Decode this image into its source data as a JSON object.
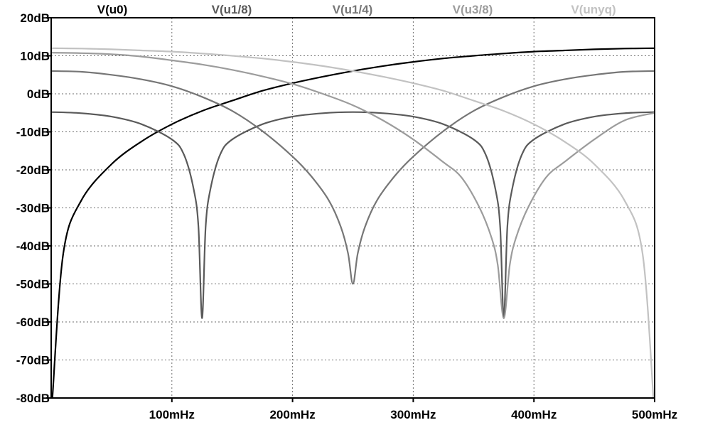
{
  "chart_data": {
    "type": "line",
    "title": "",
    "xlabel": "",
    "ylabel": "",
    "x_unit": "mHz",
    "y_unit": "dB",
    "xlim": [
      0,
      500
    ],
    "ylim": [
      -80,
      20
    ],
    "grid": true,
    "legend_placement": "top",
    "x_ticks": [
      {
        "value": 100,
        "label": "100mHz"
      },
      {
        "value": 200,
        "label": "200mHz"
      },
      {
        "value": 300,
        "label": "300mHz"
      },
      {
        "value": 400,
        "label": "400mHz"
      },
      {
        "value": 500,
        "label": "500mHz"
      }
    ],
    "y_ticks": [
      {
        "value": 20,
        "label": "20dB"
      },
      {
        "value": 10,
        "label": "10dB"
      },
      {
        "value": 0,
        "label": "0dB"
      },
      {
        "value": -10,
        "label": "-10dB"
      },
      {
        "value": -20,
        "label": "-20dB"
      },
      {
        "value": -30,
        "label": "-30dB"
      },
      {
        "value": -40,
        "label": "-40dB"
      },
      {
        "value": -50,
        "label": "-50dB"
      },
      {
        "value": -60,
        "label": "-60dB"
      },
      {
        "value": -70,
        "label": "-70dB"
      },
      {
        "value": -80,
        "label": "-80dB"
      }
    ],
    "series": [
      {
        "name": "V(u0)",
        "color": "#000000",
        "points": [
          [
            1,
            -80
          ],
          [
            10,
            -42
          ],
          [
            25,
            -28
          ],
          [
            50,
            -18.5
          ],
          [
            75,
            -12.5
          ],
          [
            100,
            -8
          ],
          [
            125,
            -4.5
          ],
          [
            150,
            -1.8
          ],
          [
            175,
            0.8
          ],
          [
            200,
            2.8
          ],
          [
            225,
            4.5
          ],
          [
            250,
            6
          ],
          [
            275,
            7.3
          ],
          [
            300,
            8.4
          ],
          [
            325,
            9.3
          ],
          [
            350,
            10
          ],
          [
            375,
            10.6
          ],
          [
            400,
            11.1
          ],
          [
            425,
            11.4
          ],
          [
            450,
            11.7
          ],
          [
            475,
            11.9
          ],
          [
            500,
            12
          ]
        ]
      },
      {
        "name": "V(u1/8)",
        "color": "#5a5a5a",
        "points": [
          [
            0,
            -4.8
          ],
          [
            25,
            -5.1
          ],
          [
            50,
            -6
          ],
          [
            75,
            -8
          ],
          [
            100,
            -12
          ],
          [
            110,
            -16
          ],
          [
            118,
            -25
          ],
          [
            122,
            -35
          ],
          [
            125,
            -59
          ],
          [
            128,
            -35
          ],
          [
            132,
            -25
          ],
          [
            140,
            -16
          ],
          [
            150,
            -12
          ],
          [
            175,
            -8
          ],
          [
            200,
            -6
          ],
          [
            225,
            -5.1
          ],
          [
            250,
            -4.8
          ],
          [
            275,
            -5.1
          ],
          [
            300,
            -6
          ],
          [
            325,
            -8
          ],
          [
            350,
            -12
          ],
          [
            360,
            -16
          ],
          [
            368,
            -25
          ],
          [
            372,
            -35
          ],
          [
            375,
            -59
          ],
          [
            378,
            -35
          ],
          [
            382,
            -25
          ],
          [
            390,
            -16
          ],
          [
            400,
            -12
          ],
          [
            425,
            -8
          ],
          [
            450,
            -6
          ],
          [
            475,
            -5.1
          ],
          [
            500,
            -4.8
          ]
        ]
      },
      {
        "name": "V(u1/4)",
        "color": "#767676",
        "points": [
          [
            0,
            6
          ],
          [
            25,
            5.8
          ],
          [
            50,
            5
          ],
          [
            75,
            3.8
          ],
          [
            100,
            2
          ],
          [
            125,
            -0.8
          ],
          [
            150,
            -4.5
          ],
          [
            175,
            -9.8
          ],
          [
            200,
            -16.5
          ],
          [
            215,
            -21.5
          ],
          [
            230,
            -28
          ],
          [
            240,
            -35
          ],
          [
            246,
            -42
          ],
          [
            250,
            -50
          ],
          [
            254,
            -42
          ],
          [
            260,
            -35
          ],
          [
            270,
            -28
          ],
          [
            285,
            -21.5
          ],
          [
            300,
            -16.5
          ],
          [
            325,
            -9.8
          ],
          [
            350,
            -4.5
          ],
          [
            375,
            -0.8
          ],
          [
            400,
            2
          ],
          [
            425,
            3.8
          ],
          [
            450,
            5
          ],
          [
            475,
            5.8
          ],
          [
            500,
            6
          ]
        ]
      },
      {
        "name": "V(u3/8)",
        "color": "#9c9c9c",
        "points": [
          [
            0,
            10.8
          ],
          [
            25,
            10.7
          ],
          [
            50,
            10.4
          ],
          [
            75,
            9.8
          ],
          [
            100,
            8.8
          ],
          [
            125,
            7.7
          ],
          [
            150,
            6.3
          ],
          [
            175,
            4.6
          ],
          [
            200,
            2.6
          ],
          [
            225,
            0
          ],
          [
            250,
            -3
          ],
          [
            275,
            -7
          ],
          [
            300,
            -12
          ],
          [
            325,
            -18
          ],
          [
            340,
            -22
          ],
          [
            355,
            -30
          ],
          [
            365,
            -38
          ],
          [
            370,
            -45
          ],
          [
            375,
            -59
          ],
          [
            380,
            -45
          ],
          [
            385,
            -38
          ],
          [
            395,
            -30
          ],
          [
            410,
            -22
          ],
          [
            425,
            -18
          ],
          [
            450,
            -12
          ],
          [
            475,
            -7
          ],
          [
            500,
            -5
          ]
        ]
      },
      {
        "name": "V(unyq)",
        "color": "#c2c2c2",
        "points": [
          [
            0,
            12
          ],
          [
            25,
            11.9
          ],
          [
            50,
            11.7
          ],
          [
            75,
            11.4
          ],
          [
            100,
            11.1
          ],
          [
            125,
            10.6
          ],
          [
            150,
            10
          ],
          [
            175,
            9.3
          ],
          [
            200,
            8.4
          ],
          [
            225,
            7.3
          ],
          [
            250,
            6
          ],
          [
            275,
            4.5
          ],
          [
            300,
            2.8
          ],
          [
            325,
            0.8
          ],
          [
            350,
            -1.8
          ],
          [
            375,
            -4.5
          ],
          [
            400,
            -8
          ],
          [
            425,
            -12.5
          ],
          [
            450,
            -18.5
          ],
          [
            475,
            -28
          ],
          [
            490,
            -42
          ],
          [
            499,
            -80
          ]
        ]
      }
    ]
  }
}
